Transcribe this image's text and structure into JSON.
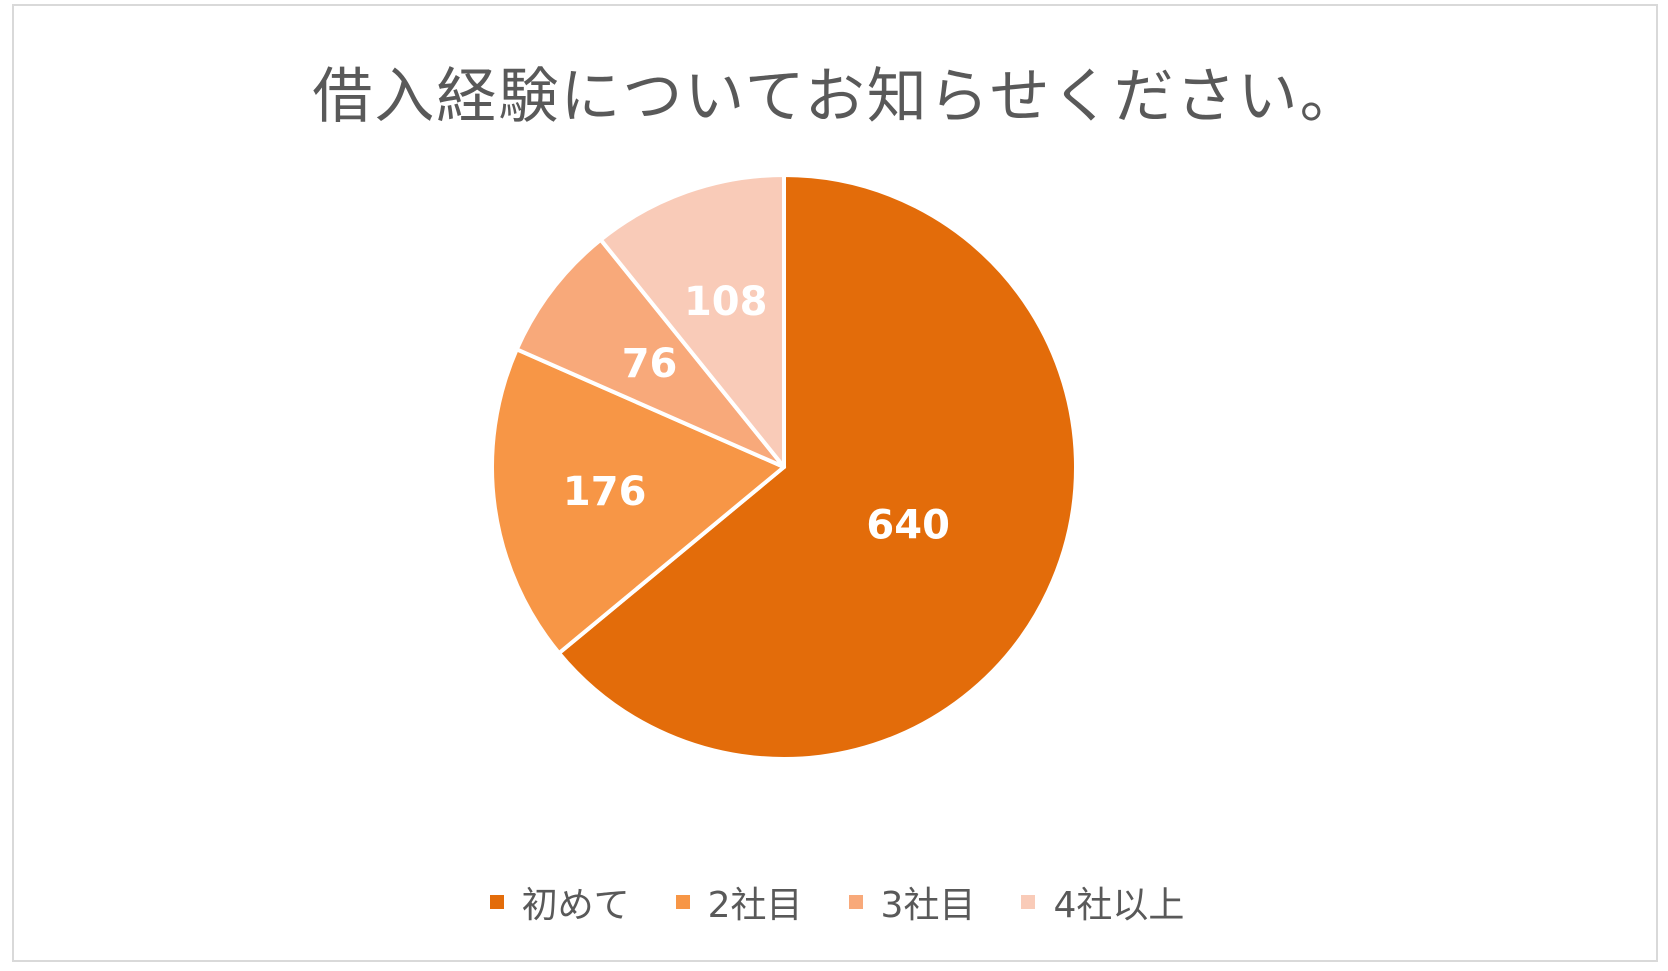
{
  "chart_data": {
    "type": "pie",
    "title": "借入経験についてお知らせください。",
    "categories": [
      "初めて",
      "2社目",
      "3社目",
      "4社以上"
    ],
    "values": [
      640,
      176,
      76,
      108
    ],
    "data_labels": [
      "640",
      "176",
      "76",
      "108"
    ],
    "colors": [
      "#E36C0A",
      "#F79646",
      "#F8A97A",
      "#F9CBB8"
    ],
    "start_angle": "12 o'clock",
    "direction": "clockwise",
    "legend_position": "bottom"
  }
}
